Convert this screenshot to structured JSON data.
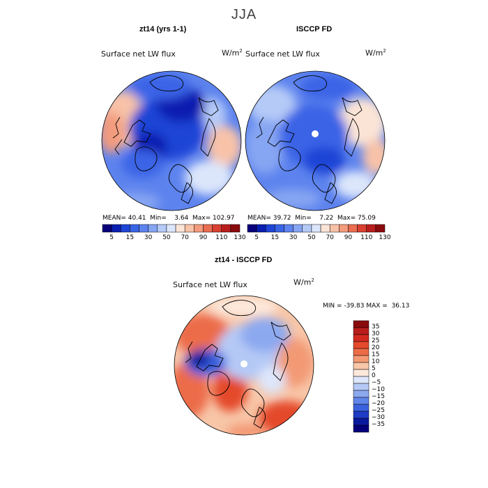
{
  "figure": {
    "title": "JJA",
    "season": "JJA"
  },
  "chart_data": [
    {
      "type": "heatmap",
      "projection": "north-polar-stereographic",
      "title": "zt14 (yrs 1-1)",
      "subtitle": "Surface net LW flux",
      "units": "W/m",
      "units_superscript": "2",
      "stats": {
        "mean_label": "MEAN=",
        "mean": "40.41",
        "min_label": "Min=",
        "min": "3.64",
        "max_label": "Max=",
        "max": "102.97"
      },
      "colorbar": {
        "orientation": "horizontal",
        "levels": [
          5,
          10,
          15,
          20,
          30,
          40,
          50,
          60,
          70,
          80,
          90,
          100,
          110,
          120,
          130
        ],
        "tick_labels": [
          "5",
          "15",
          "30",
          "50",
          "70",
          "90",
          "110",
          "130"
        ],
        "colors": [
          "#08007a",
          "#0a1fb0",
          "#1f45d6",
          "#3a64e6",
          "#5d83ee",
          "#86a5f2",
          "#b5caf7",
          "#dce6fb",
          "#fbe4d6",
          "#f8c2a8",
          "#f39b7d",
          "#ea6d52",
          "#d94031",
          "#b81e1c",
          "#8a0b0d"
        ]
      }
    },
    {
      "type": "heatmap",
      "projection": "north-polar-stereographic",
      "title": "ISCCP FD",
      "subtitle": "Surface net LW flux",
      "units": "W/m",
      "units_superscript": "2",
      "stats": {
        "mean_label": "MEAN=",
        "mean": "39.72",
        "min_label": "Min=",
        "min": "7.22",
        "max_label": "Max=",
        "max": "75.09"
      },
      "colorbar": {
        "orientation": "horizontal",
        "levels": [
          5,
          10,
          15,
          20,
          30,
          40,
          50,
          60,
          70,
          80,
          90,
          100,
          110,
          120,
          130
        ],
        "tick_labels": [
          "5",
          "15",
          "30",
          "50",
          "70",
          "90",
          "110",
          "130"
        ],
        "colors": [
          "#08007a",
          "#0a1fb0",
          "#1f45d6",
          "#3a64e6",
          "#5d83ee",
          "#86a5f2",
          "#b5caf7",
          "#dce6fb",
          "#fbe4d6",
          "#f8c2a8",
          "#f39b7d",
          "#ea6d52",
          "#d94031",
          "#b81e1c",
          "#8a0b0d"
        ]
      }
    },
    {
      "type": "heatmap",
      "projection": "north-polar-stereographic",
      "title": "zt14 - ISCCP FD",
      "subtitle": "Surface net LW flux",
      "units": "W/m",
      "units_superscript": "2",
      "stats": {
        "min_label": "MIN =",
        "min": "-39.83",
        "max_label": "MAX =",
        "max": "36.13"
      },
      "colorbar": {
        "orientation": "vertical",
        "levels": [
          35,
          30,
          25,
          20,
          15,
          10,
          5,
          0,
          -5,
          -10,
          -15,
          -20,
          -25,
          -30,
          -35
        ],
        "tick_labels": [
          "35",
          "30",
          "25",
          "20",
          "15",
          "10",
          "5",
          "0",
          "−5",
          "−10",
          "−15",
          "−20",
          "−25",
          "−30",
          "−35"
        ],
        "colors": [
          "#8a0b0d",
          "#b81e1c",
          "#d32a20",
          "#e44a2c",
          "#ec6c48",
          "#f39a74",
          "#f8c6a8",
          "#fde9dc",
          "#dde6fb",
          "#b5c9f6",
          "#8ca9f0",
          "#6186ea",
          "#3b62de",
          "#1f3cc6",
          "#0a1a9e",
          "#05007a"
        ]
      }
    }
  ]
}
